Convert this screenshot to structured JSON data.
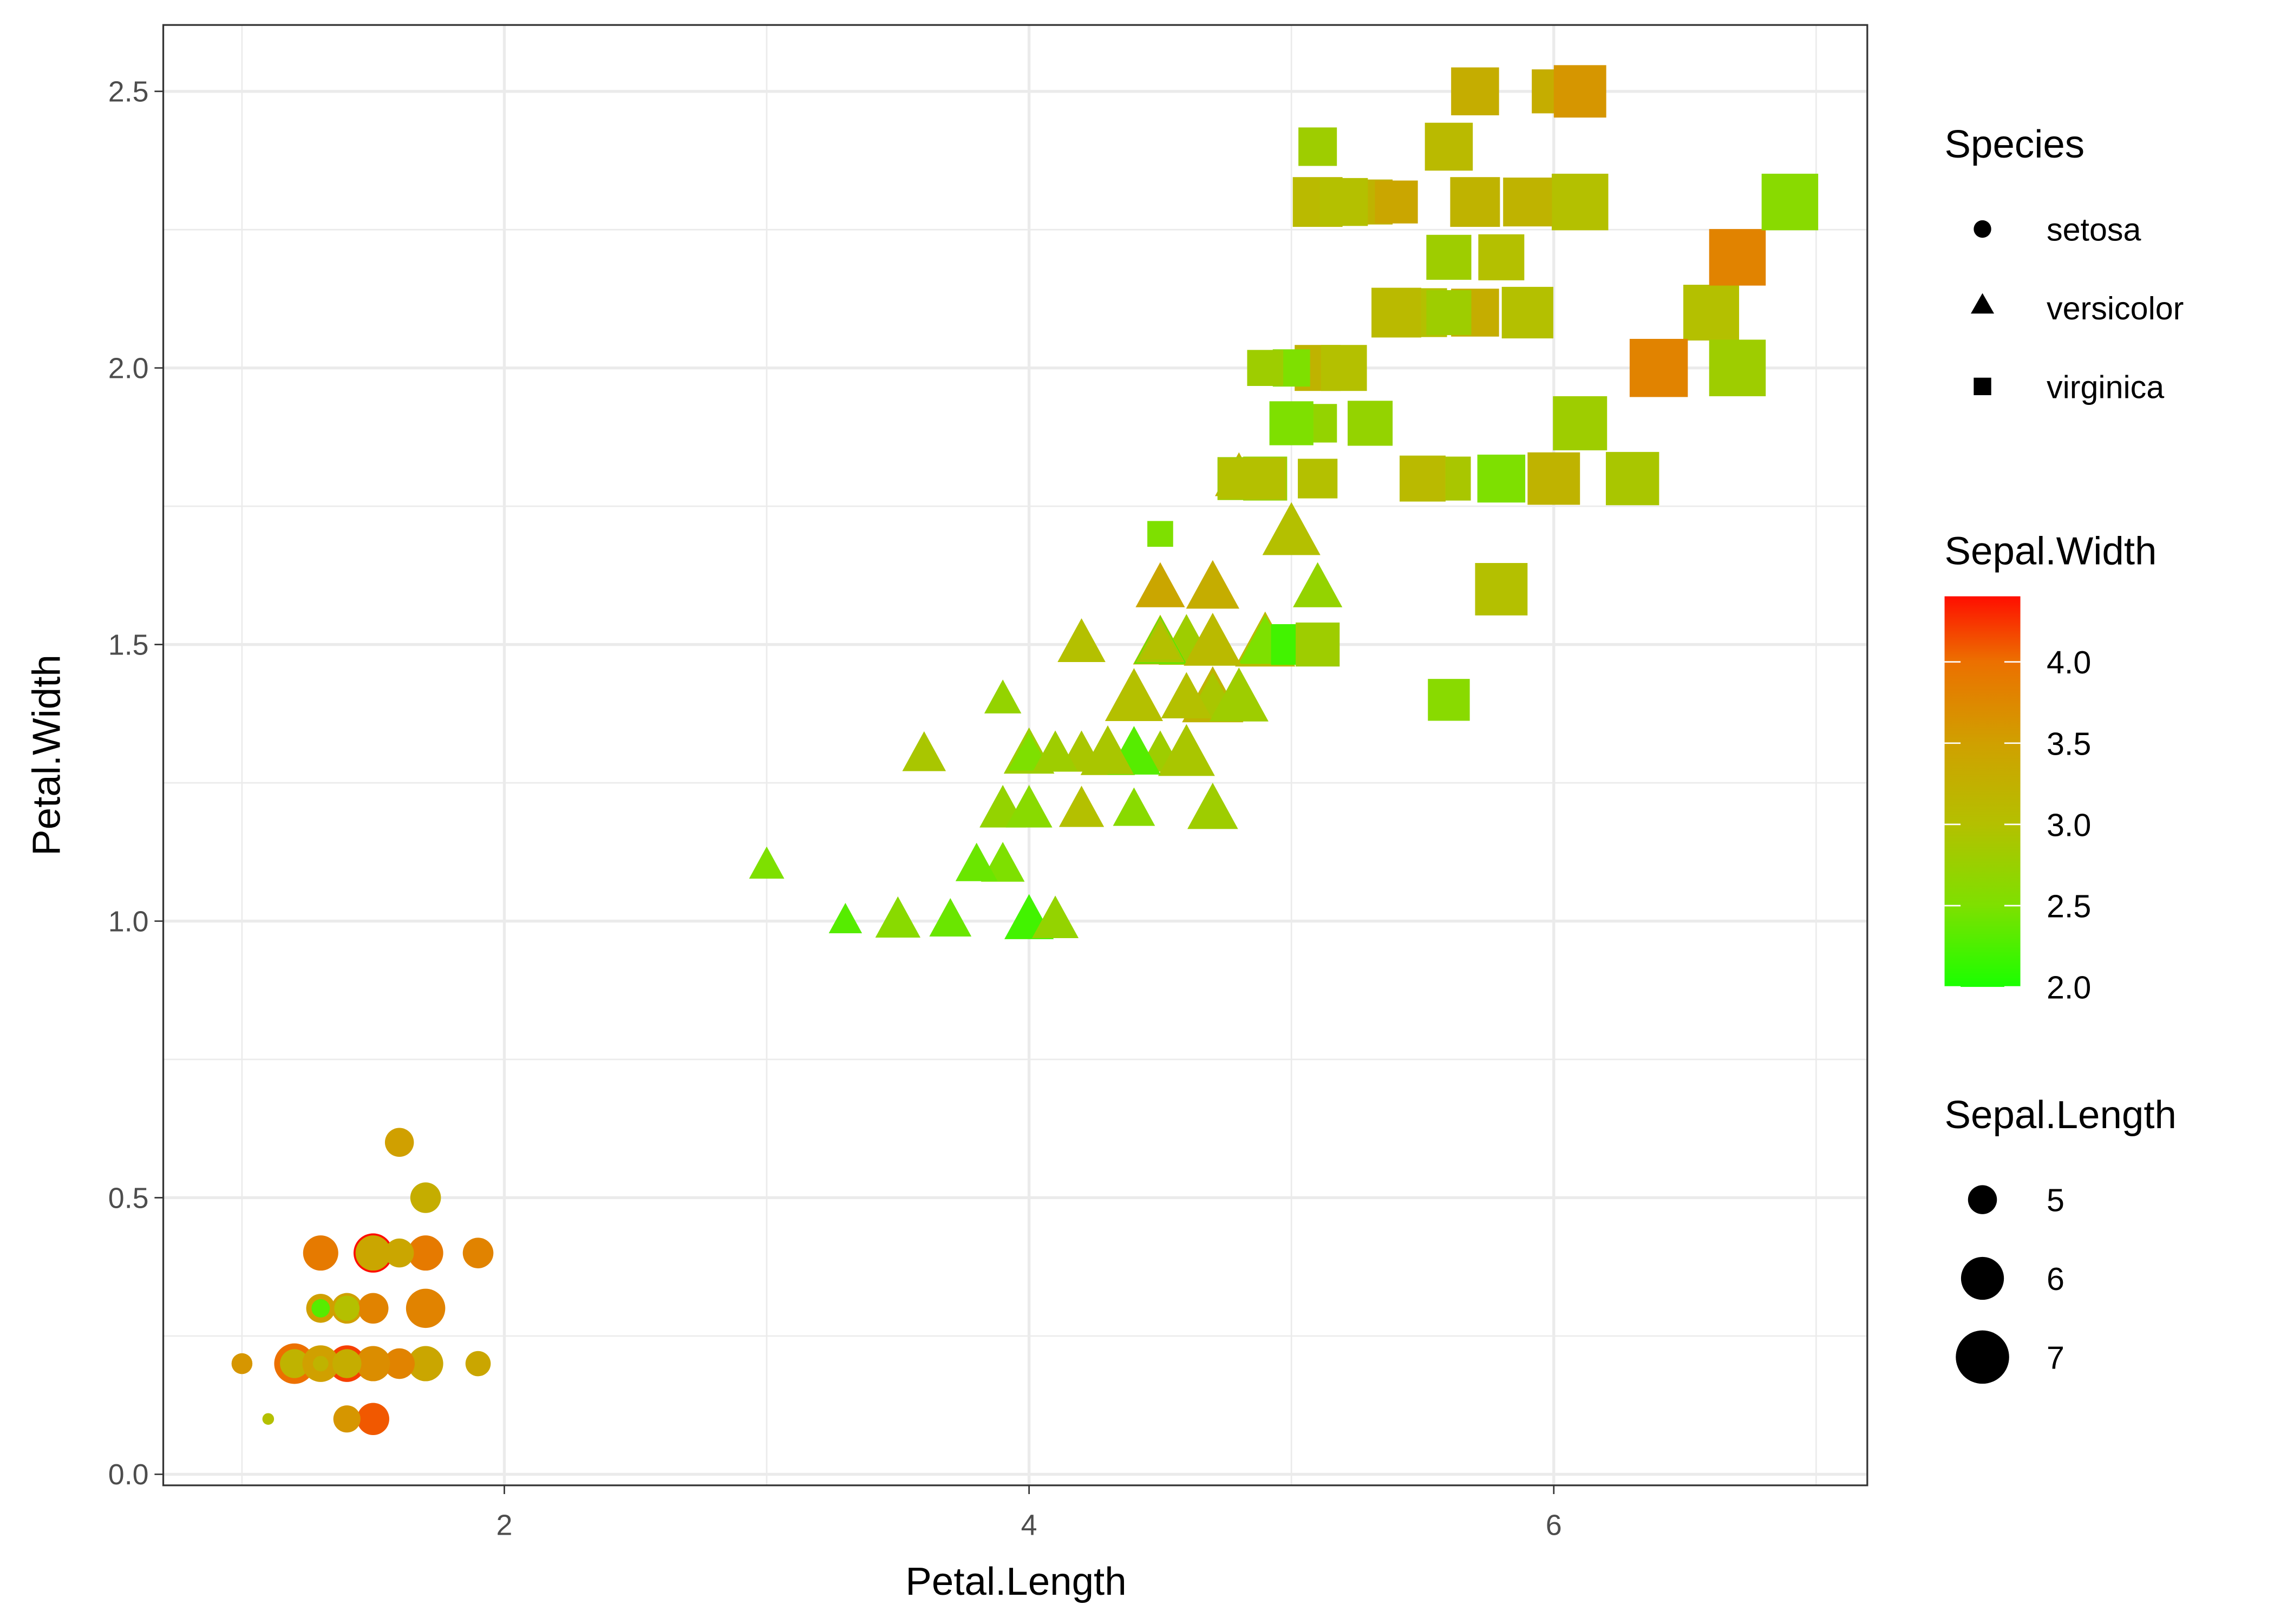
{
  "chart_data": {
    "type": "scatter",
    "xlabel": "Petal.Length",
    "ylabel": "Petal.Width",
    "xlim": [
      0.7,
      7.195
    ],
    "ylim": [
      -0.02,
      2.62
    ],
    "xticks": [
      2,
      4,
      6
    ],
    "xtick_labels": [
      "2",
      "4",
      "6"
    ],
    "yticks": [
      0,
      0.5,
      1,
      1.5,
      2,
      2.5
    ],
    "ytick_labels": [
      "0.0",
      "0.5",
      "1.0",
      "1.5",
      "2.0",
      "2.5"
    ],
    "grid": true,
    "legend": {
      "species": {
        "title": "Species",
        "items": [
          "setosa",
          "versicolor",
          "virginica"
        ],
        "shapes": [
          "circle",
          "triangle",
          "square"
        ]
      },
      "color": {
        "title": "Sepal.Width",
        "range": [
          2.0,
          4.4
        ],
        "ticks": [
          2.0,
          2.5,
          3.0,
          3.5,
          4.0
        ],
        "tick_labels": [
          "2.0",
          "2.5",
          "3.0",
          "3.5",
          "4.0"
        ],
        "low": "#1aff00",
        "high": "#ff0e00"
      },
      "size": {
        "title": "Sepal.Length",
        "range": [
          4.3,
          7.9
        ],
        "breaks": [
          5,
          6,
          7
        ],
        "break_labels": [
          "5",
          "6",
          "7"
        ]
      },
      "placement": "right"
    },
    "columns": [
      "Petal.Length",
      "Petal.Width",
      "Sepal.Width",
      "Sepal.Length",
      "Species"
    ],
    "points": [
      [
        1.4,
        0.2,
        3.5,
        5.1,
        0
      ],
      [
        1.4,
        0.2,
        3.0,
        4.9,
        0
      ],
      [
        1.3,
        0.2,
        3.2,
        4.7,
        0
      ],
      [
        1.5,
        0.2,
        3.1,
        4.6,
        0
      ],
      [
        1.4,
        0.2,
        3.6,
        5.0,
        0
      ],
      [
        1.7,
        0.4,
        3.9,
        5.4,
        0
      ],
      [
        1.4,
        0.3,
        3.4,
        4.6,
        0
      ],
      [
        1.5,
        0.2,
        3.4,
        5.0,
        0
      ],
      [
        1.4,
        0.2,
        2.9,
        4.4,
        0
      ],
      [
        1.5,
        0.1,
        3.1,
        4.9,
        0
      ],
      [
        1.5,
        0.2,
        3.7,
        5.4,
        0
      ],
      [
        1.6,
        0.2,
        3.4,
        4.8,
        0
      ],
      [
        1.4,
        0.1,
        3.0,
        4.8,
        0
      ],
      [
        1.1,
        0.1,
        3.0,
        4.3,
        0
      ],
      [
        1.2,
        0.2,
        4.0,
        5.8,
        0
      ],
      [
        1.5,
        0.4,
        4.4,
        5.7,
        0
      ],
      [
        1.3,
        0.4,
        3.9,
        5.4,
        0
      ],
      [
        1.4,
        0.3,
        3.5,
        5.1,
        0
      ],
      [
        1.7,
        0.3,
        3.8,
        5.7,
        0
      ],
      [
        1.5,
        0.3,
        3.8,
        5.1,
        0
      ],
      [
        1.7,
        0.2,
        3.4,
        5.4,
        0
      ],
      [
        1.5,
        0.4,
        3.7,
        5.1,
        0
      ],
      [
        1.0,
        0.2,
        3.6,
        4.6,
        0
      ],
      [
        1.7,
        0.5,
        3.3,
        5.1,
        0
      ],
      [
        1.9,
        0.2,
        3.4,
        4.8,
        0
      ],
      [
        1.6,
        0.2,
        3.0,
        5.0,
        0
      ],
      [
        1.6,
        0.4,
        3.4,
        5.0,
        0
      ],
      [
        1.5,
        0.2,
        3.5,
        5.2,
        0
      ],
      [
        1.4,
        0.2,
        3.4,
        5.2,
        0
      ],
      [
        1.6,
        0.2,
        3.2,
        4.7,
        0
      ],
      [
        1.6,
        0.2,
        3.1,
        4.8,
        0
      ],
      [
        1.5,
        0.4,
        3.4,
        5.4,
        0
      ],
      [
        1.5,
        0.1,
        4.1,
        5.2,
        0
      ],
      [
        1.4,
        0.2,
        4.2,
        5.5,
        0
      ],
      [
        1.5,
        0.2,
        3.1,
        4.9,
        0
      ],
      [
        1.2,
        0.2,
        3.2,
        5.0,
        0
      ],
      [
        1.3,
        0.2,
        3.5,
        5.5,
        0
      ],
      [
        1.4,
        0.1,
        3.6,
        4.9,
        0
      ],
      [
        1.3,
        0.2,
        3.0,
        4.4,
        0
      ],
      [
        1.5,
        0.2,
        3.4,
        5.1,
        0
      ],
      [
        1.3,
        0.3,
        3.5,
        5.0,
        0
      ],
      [
        1.3,
        0.3,
        2.3,
        4.5,
        0
      ],
      [
        1.3,
        0.2,
        3.2,
        4.4,
        0
      ],
      [
        1.6,
        0.6,
        3.5,
        5.0,
        0
      ],
      [
        1.9,
        0.4,
        3.8,
        5.1,
        0
      ],
      [
        1.4,
        0.3,
        3.0,
        4.8,
        0
      ],
      [
        1.6,
        0.2,
        3.8,
        5.1,
        0
      ],
      [
        1.4,
        0.2,
        3.2,
        4.6,
        0
      ],
      [
        1.5,
        0.2,
        3.7,
        5.3,
        0
      ],
      [
        1.4,
        0.2,
        3.3,
        5.0,
        0
      ],
      [
        4.7,
        1.4,
        3.2,
        7.0,
        1
      ],
      [
        4.5,
        1.5,
        3.2,
        6.4,
        1
      ],
      [
        4.9,
        1.5,
        3.1,
        6.9,
        1
      ],
      [
        4.0,
        1.3,
        2.3,
        5.5,
        1
      ],
      [
        4.6,
        1.5,
        2.8,
        6.5,
        1
      ],
      [
        4.5,
        1.3,
        2.8,
        5.7,
        1
      ],
      [
        4.7,
        1.6,
        3.3,
        6.3,
        1
      ],
      [
        3.3,
        1.0,
        2.4,
        4.9,
        1
      ],
      [
        4.6,
        1.3,
        2.9,
        6.6,
        1
      ],
      [
        3.9,
        1.4,
        2.7,
        5.2,
        1
      ],
      [
        3.5,
        1.0,
        2.0,
        5.0,
        1
      ],
      [
        4.2,
        1.5,
        3.0,
        5.9,
        1
      ],
      [
        4.0,
        1.0,
        2.2,
        6.0,
        1
      ],
      [
        4.7,
        1.4,
        2.9,
        6.1,
        1
      ],
      [
        3.6,
        1.3,
        2.9,
        5.6,
        1
      ],
      [
        4.4,
        1.4,
        3.1,
        6.7,
        1
      ],
      [
        4.5,
        1.5,
        3.0,
        5.6,
        1
      ],
      [
        4.1,
        1.0,
        2.7,
        5.8,
        1
      ],
      [
        4.5,
        1.5,
        2.2,
        6.2,
        1
      ],
      [
        3.9,
        1.1,
        2.5,
        5.6,
        1
      ],
      [
        4.8,
        1.8,
        3.2,
        5.9,
        1
      ],
      [
        4.0,
        1.3,
        2.8,
        6.1,
        1
      ],
      [
        4.9,
        1.5,
        2.5,
        6.3,
        1
      ],
      [
        4.7,
        1.2,
        2.8,
        6.1,
        1
      ],
      [
        4.3,
        1.3,
        2.9,
        6.4,
        1
      ],
      [
        4.4,
        1.4,
        3.0,
        6.6,
        1
      ],
      [
        4.8,
        1.4,
        2.8,
        6.8,
        1
      ],
      [
        5.0,
        1.7,
        3.0,
        6.7,
        1
      ],
      [
        4.5,
        1.5,
        2.9,
        6.0,
        1
      ],
      [
        3.5,
        1.0,
        2.6,
        5.7,
        1
      ],
      [
        3.8,
        1.1,
        2.4,
        5.5,
        1
      ],
      [
        3.7,
        1.0,
        2.4,
        5.5,
        1
      ],
      [
        3.9,
        1.2,
        2.7,
        5.8,
        1
      ],
      [
        5.1,
        1.6,
        2.7,
        6.0,
        1
      ],
      [
        4.5,
        1.5,
        3.0,
        5.4,
        1
      ],
      [
        4.5,
        1.6,
        3.4,
        6.0,
        1
      ],
      [
        4.7,
        1.5,
        3.1,
        6.7,
        1
      ],
      [
        4.4,
        1.3,
        2.3,
        6.3,
        1
      ],
      [
        4.1,
        1.3,
        3.0,
        5.6,
        1
      ],
      [
        4.0,
        1.3,
        2.5,
        5.5,
        1
      ],
      [
        4.4,
        1.2,
        2.6,
        5.5,
        1
      ],
      [
        4.6,
        1.4,
        3.0,
        6.1,
        1
      ],
      [
        4.0,
        1.2,
        2.6,
        5.8,
        1
      ],
      [
        3.3,
        1.0,
        2.3,
        5.0,
        1
      ],
      [
        4.2,
        1.3,
        2.7,
        5.6,
        1
      ],
      [
        4.2,
        1.2,
        3.0,
        5.7,
        1
      ],
      [
        4.2,
        1.3,
        2.9,
        5.7,
        1
      ],
      [
        4.3,
        1.3,
        2.9,
        6.2,
        1
      ],
      [
        3.0,
        1.1,
        2.5,
        5.1,
        1
      ],
      [
        4.1,
        1.3,
        2.8,
        5.7,
        1
      ],
      [
        6.0,
        2.5,
        3.3,
        6.3,
        2
      ],
      [
        5.1,
        1.9,
        2.7,
        5.8,
        2
      ],
      [
        5.9,
        2.1,
        3.0,
        7.1,
        2
      ],
      [
        5.6,
        1.8,
        2.9,
        6.3,
        2
      ],
      [
        5.8,
        2.2,
        3.0,
        6.5,
        2
      ],
      [
        6.6,
        2.1,
        3.0,
        7.6,
        2
      ],
      [
        4.5,
        1.7,
        2.5,
        4.9,
        2
      ],
      [
        6.3,
        1.8,
        2.9,
        7.3,
        2
      ],
      [
        5.8,
        1.8,
        2.5,
        6.7,
        2
      ],
      [
        6.1,
        2.5,
        3.6,
        7.2,
        2
      ],
      [
        5.1,
        2.0,
        3.2,
        6.5,
        2
      ],
      [
        5.3,
        1.9,
        2.7,
        6.4,
        2
      ],
      [
        5.5,
        2.1,
        3.0,
        6.8,
        2
      ],
      [
        5.0,
        2.0,
        2.5,
        5.7,
        2
      ],
      [
        5.1,
        2.4,
        2.8,
        5.8,
        2
      ],
      [
        5.3,
        2.3,
        3.2,
        6.4,
        2
      ],
      [
        5.5,
        1.8,
        3.0,
        6.5,
        2
      ],
      [
        6.7,
        2.2,
        3.8,
        7.7,
        2
      ],
      [
        6.9,
        2.3,
        2.6,
        7.7,
        2
      ],
      [
        5.0,
        1.5,
        2.2,
        6.0,
        2
      ],
      [
        5.7,
        2.3,
        3.2,
        6.9,
        2
      ],
      [
        4.9,
        2.0,
        2.8,
        5.6,
        2
      ],
      [
        6.7,
        2.0,
        2.8,
        7.7,
        2
      ],
      [
        4.9,
        1.8,
        2.7,
        6.3,
        2
      ],
      [
        5.7,
        2.1,
        3.3,
        6.7,
        2
      ],
      [
        6.0,
        1.8,
        3.2,
        7.2,
        2
      ],
      [
        4.8,
        1.8,
        2.8,
        6.2,
        2
      ],
      [
        4.9,
        1.8,
        3.0,
        6.1,
        2
      ],
      [
        5.6,
        2.1,
        2.8,
        6.4,
        2
      ],
      [
        5.8,
        1.6,
        3.0,
        7.2,
        2
      ],
      [
        6.1,
        1.9,
        2.8,
        7.4,
        2
      ],
      [
        6.4,
        2.0,
        3.8,
        7.9,
        2
      ],
      [
        5.6,
        2.2,
        2.8,
        6.4,
        2
      ],
      [
        5.1,
        1.5,
        2.8,
        6.3,
        2
      ],
      [
        5.6,
        1.4,
        2.6,
        6.1,
        2
      ],
      [
        6.1,
        2.3,
        3.0,
        7.7,
        2
      ],
      [
        5.6,
        2.4,
        3.4,
        6.3,
        2
      ],
      [
        5.5,
        1.8,
        3.1,
        6.4,
        2
      ],
      [
        4.8,
        1.8,
        3.0,
        6.0,
        2
      ],
      [
        5.4,
        2.1,
        3.1,
        6.9,
        2
      ],
      [
        5.6,
        2.4,
        3.1,
        6.7,
        2
      ],
      [
        5.1,
        2.3,
        3.1,
        6.9,
        2
      ],
      [
        5.1,
        1.9,
        2.7,
        5.8,
        2
      ],
      [
        5.9,
        2.3,
        3.2,
        6.8,
        2
      ],
      [
        5.7,
        2.5,
        3.3,
        6.7,
        2
      ],
      [
        5.2,
        2.3,
        3.0,
        6.7,
        2
      ],
      [
        5.0,
        1.9,
        2.5,
        6.3,
        2
      ],
      [
        5.2,
        2.0,
        3.0,
        6.5,
        2
      ],
      [
        5.4,
        2.3,
        3.4,
        6.2,
        2
      ],
      [
        5.1,
        1.8,
        3.0,
        5.9,
        2
      ]
    ]
  }
}
